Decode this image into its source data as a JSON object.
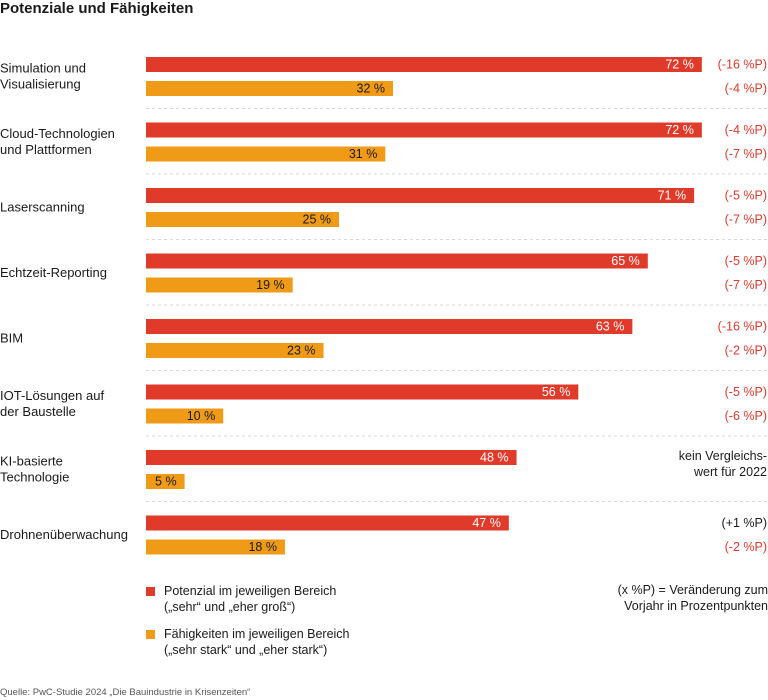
{
  "chart_data": {
    "type": "bar",
    "orientation": "horizontal",
    "title": "Potenziale und Fähigkeiten",
    "categories": [
      [
        "Simulation und",
        "Visualisierung"
      ],
      [
        "Cloud-Technologien",
        "und Plattformen"
      ],
      [
        "Laserscanning"
      ],
      [
        "Echtzeit-Reporting"
      ],
      [
        "BIM"
      ],
      [
        "IOT-Lösungen auf",
        "der Baustelle"
      ],
      [
        "KI-basierte",
        "Technologie"
      ],
      [
        "Drohnenüberwachung"
      ]
    ],
    "series": [
      {
        "name": "Potenzial im jeweiligen Bereich",
        "color": "#e03a2b",
        "values": [
          72,
          72,
          71,
          65,
          63,
          56,
          48,
          47
        ],
        "labels": [
          "72 %",
          "72 %",
          "71 %",
          "65 %",
          "63 %",
          "56 %",
          "48 %",
          "47 %"
        ],
        "changes": [
          "(-16 %P)",
          "(-4 %P)",
          "(-5 %P)",
          "(-5 %P)",
          "(-16 %P)",
          "(-5 %P)",
          null,
          "(+1 %P)"
        ]
      },
      {
        "name": "Fähigkeiten im jeweiligen Bereich",
        "color": "#f09b17",
        "values": [
          32,
          31,
          25,
          19,
          23,
          10,
          5,
          18
        ],
        "labels": [
          "32 %",
          "31 %",
          "25 %",
          "19 %",
          "23 %",
          "10 %",
          "5 %",
          "18 %"
        ],
        "changes": [
          "(-4 %P)",
          "(-7 %P)",
          "(-7 %P)",
          "(-7 %P)",
          "(-2 %P)",
          "(-6 %P)",
          null,
          "(-2 %P)"
        ]
      }
    ],
    "no_comparison_note": [
      "kein Vergleichs-",
      "wert für 2022"
    ],
    "xlim": [
      0,
      100
    ]
  },
  "legend": {
    "potential_line1": "Potenzial im jeweiligen Bereich",
    "potential_line2": "(„sehr“ und „eher groß“)",
    "capability_line1": "Fähigkeiten im jeweiligen Bereich",
    "capability_line2": "(„sehr stark“ und „eher stark“)"
  },
  "note": {
    "line1": "(x %P) = Veränderung zum",
    "line2": "Vorjahr in Prozentpunkten"
  },
  "source": "Quelle: PwC-Studie 2024 „Die Bauindustrie in Krisenzeiten“",
  "colors": {
    "potential": "#e03a2b",
    "capability": "#f09b17",
    "change_text": "#e03a2b"
  }
}
